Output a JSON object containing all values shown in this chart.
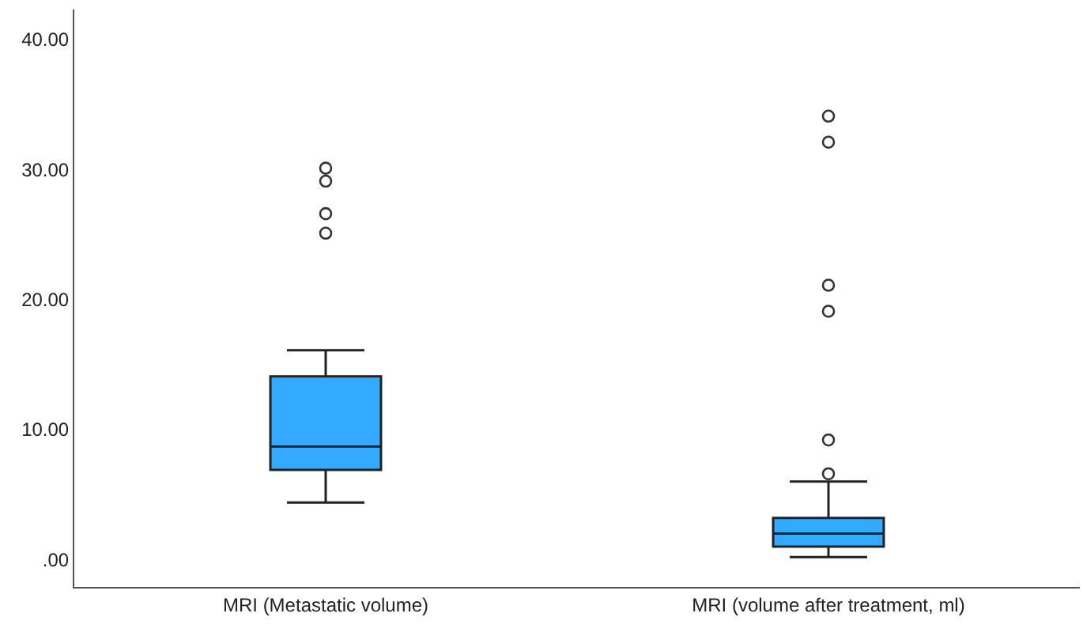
{
  "chart_data": {
    "type": "box",
    "categories": [
      "MRI (Metastatic volume)",
      "MRI (volume after treatment, ml)"
    ],
    "series": [
      {
        "color": "#33aaff",
        "boxes": [
          {
            "low": 4.4,
            "q1": 6.9,
            "median": 8.7,
            "q3": 14.1,
            "high": 16.1,
            "outliers": [
              30.1,
              29.1,
              26.6,
              25.1
            ]
          },
          {
            "low": 0.2,
            "q1": 1.0,
            "median": 2.0,
            "q3": 3.2,
            "high": 6.0,
            "outliers": [
              34.1,
              32.1,
              21.1,
              19.1,
              9.2,
              6.6
            ]
          }
        ]
      }
    ],
    "ylim": [
      -2.1,
      42.3
    ],
    "yticks": [
      {
        "value": 0,
        "label": ".00"
      },
      {
        "value": 10,
        "label": "10.00"
      },
      {
        "value": 20,
        "label": "20.00"
      },
      {
        "value": 30,
        "label": "30.00"
      },
      {
        "value": 40,
        "label": "40.00"
      }
    ],
    "grid": false,
    "marker": "circle"
  }
}
